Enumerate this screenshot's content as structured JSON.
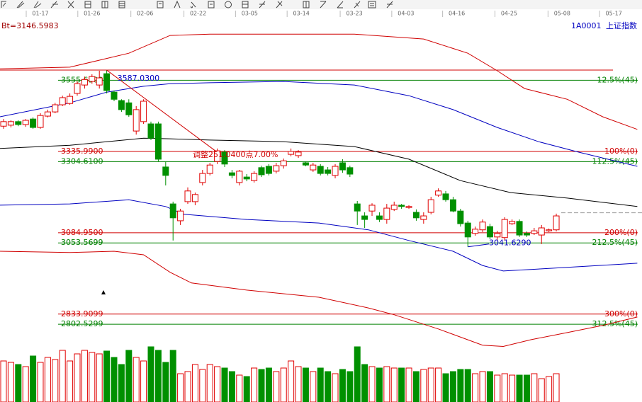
{
  "header": {
    "code": "1A0001",
    "name": "上证指数"
  },
  "chart_data": {
    "type": "candlestick",
    "xlim": [
      -0.48,
      86.63
    ],
    "ylim": [
      2733,
      3716
    ],
    "vlim": [
      0,
      80
    ],
    "up_color": "#e00000",
    "down_color": "#009000",
    "current_price": {
      "value": 3146.5983,
      "label": "Bt=3146.5983"
    },
    "x_ticks": [
      {
        "value": 5,
        "label": "01-17"
      },
      {
        "value": 12,
        "label": "01-26"
      },
      {
        "value": 19.2,
        "label": "02-06"
      },
      {
        "value": 26.4,
        "label": "02-22"
      },
      {
        "value": 33.4,
        "label": "03-05"
      },
      {
        "value": 40.4,
        "label": "03-14"
      },
      {
        "value": 47.6,
        "label": "03-23"
      },
      {
        "value": 54.6,
        "label": "04-03"
      },
      {
        "value": 61.5,
        "label": "04-16"
      },
      {
        "value": 68.6,
        "label": "04-25"
      },
      {
        "value": 75.8,
        "label": "05-08"
      },
      {
        "value": 82.8,
        "label": "05-17"
      }
    ],
    "candles": [
      [
        3414,
        3436,
        3406,
        3428
      ],
      [
        3417,
        3432,
        3410,
        3428
      ],
      [
        3428,
        3432,
        3414,
        3419
      ],
      [
        3419,
        3436,
        3412,
        3432
      ],
      [
        3436,
        3441,
        3406,
        3410
      ],
      [
        3410,
        3454,
        3406,
        3447
      ],
      [
        3445,
        3465,
        3441,
        3458
      ],
      [
        3458,
        3486,
        3454,
        3480
      ],
      [
        3480,
        3508,
        3476,
        3502
      ],
      [
        3484,
        3515,
        3480,
        3506
      ],
      [
        3515,
        3552,
        3508,
        3545
      ],
      [
        3541,
        3567,
        3530,
        3558
      ],
      [
        3552,
        3574,
        3545,
        3567
      ],
      [
        3541,
        3585,
        3530,
        3563
      ],
      [
        3576,
        3587.03,
        3515,
        3524
      ],
      [
        3519,
        3524,
        3491,
        3497
      ],
      [
        3493,
        3497,
        3458,
        3465
      ],
      [
        3486,
        3497,
        3443,
        3449
      ],
      [
        3399,
        3476,
        3388,
        3465
      ],
      [
        3428,
        3497,
        3421,
        3491
      ],
      [
        3421,
        3428,
        3371,
        3377
      ],
      [
        3421,
        3428,
        3305,
        3312
      ],
      [
        3288,
        3305,
        3231,
        3262
      ],
      [
        3174,
        3181,
        3061,
        3131
      ],
      [
        3122,
        3159,
        3109,
        3152
      ],
      [
        3181,
        3225,
        3174,
        3214
      ],
      [
        3181,
        3209,
        3170,
        3203
      ],
      [
        3240,
        3279,
        3231,
        3268
      ],
      [
        3268,
        3301,
        3262,
        3294
      ],
      [
        3305,
        3345,
        3297,
        3338
      ],
      [
        3334,
        3340,
        3288,
        3297
      ],
      [
        3270,
        3279,
        3253,
        3262
      ],
      [
        3240,
        3279,
        3231,
        3275
      ],
      [
        3257,
        3266,
        3244,
        3251
      ],
      [
        3246,
        3275,
        3240,
        3268
      ],
      [
        3286,
        3292,
        3257,
        3264
      ],
      [
        3290,
        3297,
        3262,
        3268
      ],
      [
        3275,
        3301,
        3268,
        3292
      ],
      [
        3292,
        3314,
        3283,
        3307
      ],
      [
        3327,
        3345,
        3321,
        3336
      ],
      [
        3323,
        3340,
        3316,
        3334
      ],
      [
        3301,
        3305,
        3290,
        3294
      ],
      [
        3279,
        3301,
        3273,
        3294
      ],
      [
        3290,
        3297,
        3262,
        3268
      ],
      [
        3279,
        3288,
        3262,
        3268
      ],
      [
        3262,
        3297,
        3253,
        3290
      ],
      [
        3301,
        3312,
        3270,
        3279
      ],
      [
        3286,
        3292,
        3257,
        3266
      ],
      [
        3174,
        3183,
        3109,
        3152
      ],
      [
        3137,
        3148,
        3100,
        3126
      ],
      [
        3152,
        3176,
        3137,
        3170
      ],
      [
        3137,
        3148,
        3118,
        3126
      ],
      [
        3126,
        3174,
        3113,
        3161
      ],
      [
        3157,
        3181,
        3152,
        3170
      ],
      [
        3170,
        3174,
        3159,
        3166
      ],
      [
        3163,
        3170,
        3159,
        3166
      ],
      [
        3148,
        3157,
        3122,
        3131
      ],
      [
        3126,
        3148,
        3113,
        3137
      ],
      [
        3148,
        3196,
        3142,
        3187
      ],
      [
        3201,
        3222,
        3196,
        3214
      ],
      [
        3205,
        3214,
        3181,
        3187
      ],
      [
        3187,
        3196,
        3148,
        3152
      ],
      [
        3152,
        3159,
        3104,
        3113
      ],
      [
        3115,
        3122,
        3041.629,
        3072
      ],
      [
        3083,
        3104,
        3076,
        3096
      ],
      [
        3094,
        3126,
        3087,
        3118
      ],
      [
        3104,
        3113,
        3065,
        3072
      ],
      [
        3072,
        3091,
        3061,
        3083
      ],
      [
        3070,
        3133,
        3061,
        3126
      ],
      [
        3113,
        3126,
        3109,
        3120
      ],
      [
        3120,
        3126,
        3072,
        3078
      ],
      [
        3083,
        3089,
        3072,
        3078
      ],
      [
        3083,
        3100,
        3078,
        3091
      ],
      [
        3078,
        3109,
        3050,
        3100
      ],
      [
        3091,
        3098,
        3087,
        3094
      ],
      [
        3094,
        3144,
        3089,
        3137
      ]
    ],
    "volumes": [
      58,
      56,
      53,
      50,
      65,
      56,
      63,
      60,
      73,
      58,
      68,
      73,
      70,
      68,
      72,
      63,
      53,
      73,
      63,
      58,
      78,
      73,
      56,
      73,
      40,
      43,
      53,
      46,
      53,
      50,
      48,
      43,
      38,
      36,
      48,
      46,
      48,
      43,
      48,
      58,
      50,
      48,
      43,
      48,
      43,
      40,
      46,
      43,
      78,
      53,
      50,
      48,
      50,
      48,
      48,
      48,
      43,
      46,
      48,
      48,
      40,
      43,
      46,
      46,
      40,
      43,
      43,
      38,
      40,
      38,
      38,
      38,
      40,
      33,
      36,
      40
    ],
    "overlays": [
      {
        "color": "#d00000",
        "x": [
          -0.5,
          9,
          17,
          22.6,
          28,
          38,
          47.6,
          57,
          63,
          67,
          70.7,
          76.5,
          81.3,
          86
        ],
        "values": [
          3591,
          3596,
          3639,
          3694,
          3698,
          3698,
          3698,
          3683,
          3639,
          3585,
          3530,
          3497,
          3443,
          3404
        ]
      },
      {
        "color": "#d00000",
        "x": [
          -0.5,
          9,
          15,
          19,
          22.6,
          25.5,
          33,
          42.8,
          49.5,
          53,
          59,
          65,
          67.8,
          71.6,
          76.5,
          81.3,
          86
        ],
        "values": [
          3028,
          3024,
          3028,
          3017,
          2963,
          2930,
          2908,
          2886,
          2853,
          2832,
          2788,
          2738,
          2734,
          2755,
          2777,
          2799,
          2825
        ]
      },
      {
        "color": "#0000c0",
        "x": [
          -0.5,
          9,
          14,
          19,
          22.6,
          28,
          38,
          47.6,
          55,
          61,
          67,
          72.6,
          78,
          86
        ],
        "values": [
          3443,
          3486,
          3519,
          3537,
          3545,
          3548,
          3552,
          3541,
          3508,
          3465,
          3410,
          3366,
          3334,
          3290
        ]
      },
      {
        "color": "#000000",
        "x": [
          -0.5,
          9,
          19,
          22.6,
          28,
          38,
          47.6,
          55,
          62,
          68.8,
          76.5,
          86
        ],
        "values": [
          3345,
          3355,
          3377,
          3375,
          3371,
          3366,
          3351,
          3312,
          3246,
          3209,
          3192,
          3166
        ]
      },
      {
        "color": "#0000c0",
        "x": [
          -0.5,
          9,
          17,
          22,
          24.5,
          33,
          42.8,
          49.5,
          55,
          61,
          65,
          67.8,
          72.6,
          76.5,
          86
        ],
        "values": [
          3170,
          3174,
          3187,
          3166,
          3142,
          3126,
          3115,
          3094,
          3061,
          3028,
          2984,
          2967,
          2973,
          2978,
          2991
        ]
      }
    ],
    "levels": [
      {
        "value": 3587.03,
        "color": "#d00000"
      },
      {
        "value": 3555.65,
        "label": "3555.6500",
        "right_label": "12.5%(45)",
        "color": "#008000"
      },
      {
        "value": 3335.99,
        "label": "3335.9900",
        "right_label": "100%(0)",
        "color": "#d00000"
      },
      {
        "value": 3304.61,
        "label": "3304.6100",
        "right_label": "112.5%(45)",
        "color": "#008000"
      },
      {
        "value": 3084.95,
        "label": "3084.9500",
        "right_label": "200%(0)",
        "color": "#d00000"
      },
      {
        "value": 3053.5699,
        "label": "3053.5699",
        "right_label": "212.5%(45)",
        "color": "#008000"
      },
      {
        "value": 2833.9099,
        "label": "2833.9099",
        "right_label": "300%(0)",
        "color": "#d00000"
      },
      {
        "value": 2802.5299,
        "label": "2802.5299",
        "right_label": "312.5%(45)",
        "color": "#008000"
      }
    ],
    "annotations": [
      {
        "value": 3587.03,
        "label": "3587.0300"
      },
      {
        "value": 3041.629,
        "label": "3041.6290"
      }
    ],
    "trend_label": "调整251.0400点7.00%"
  }
}
